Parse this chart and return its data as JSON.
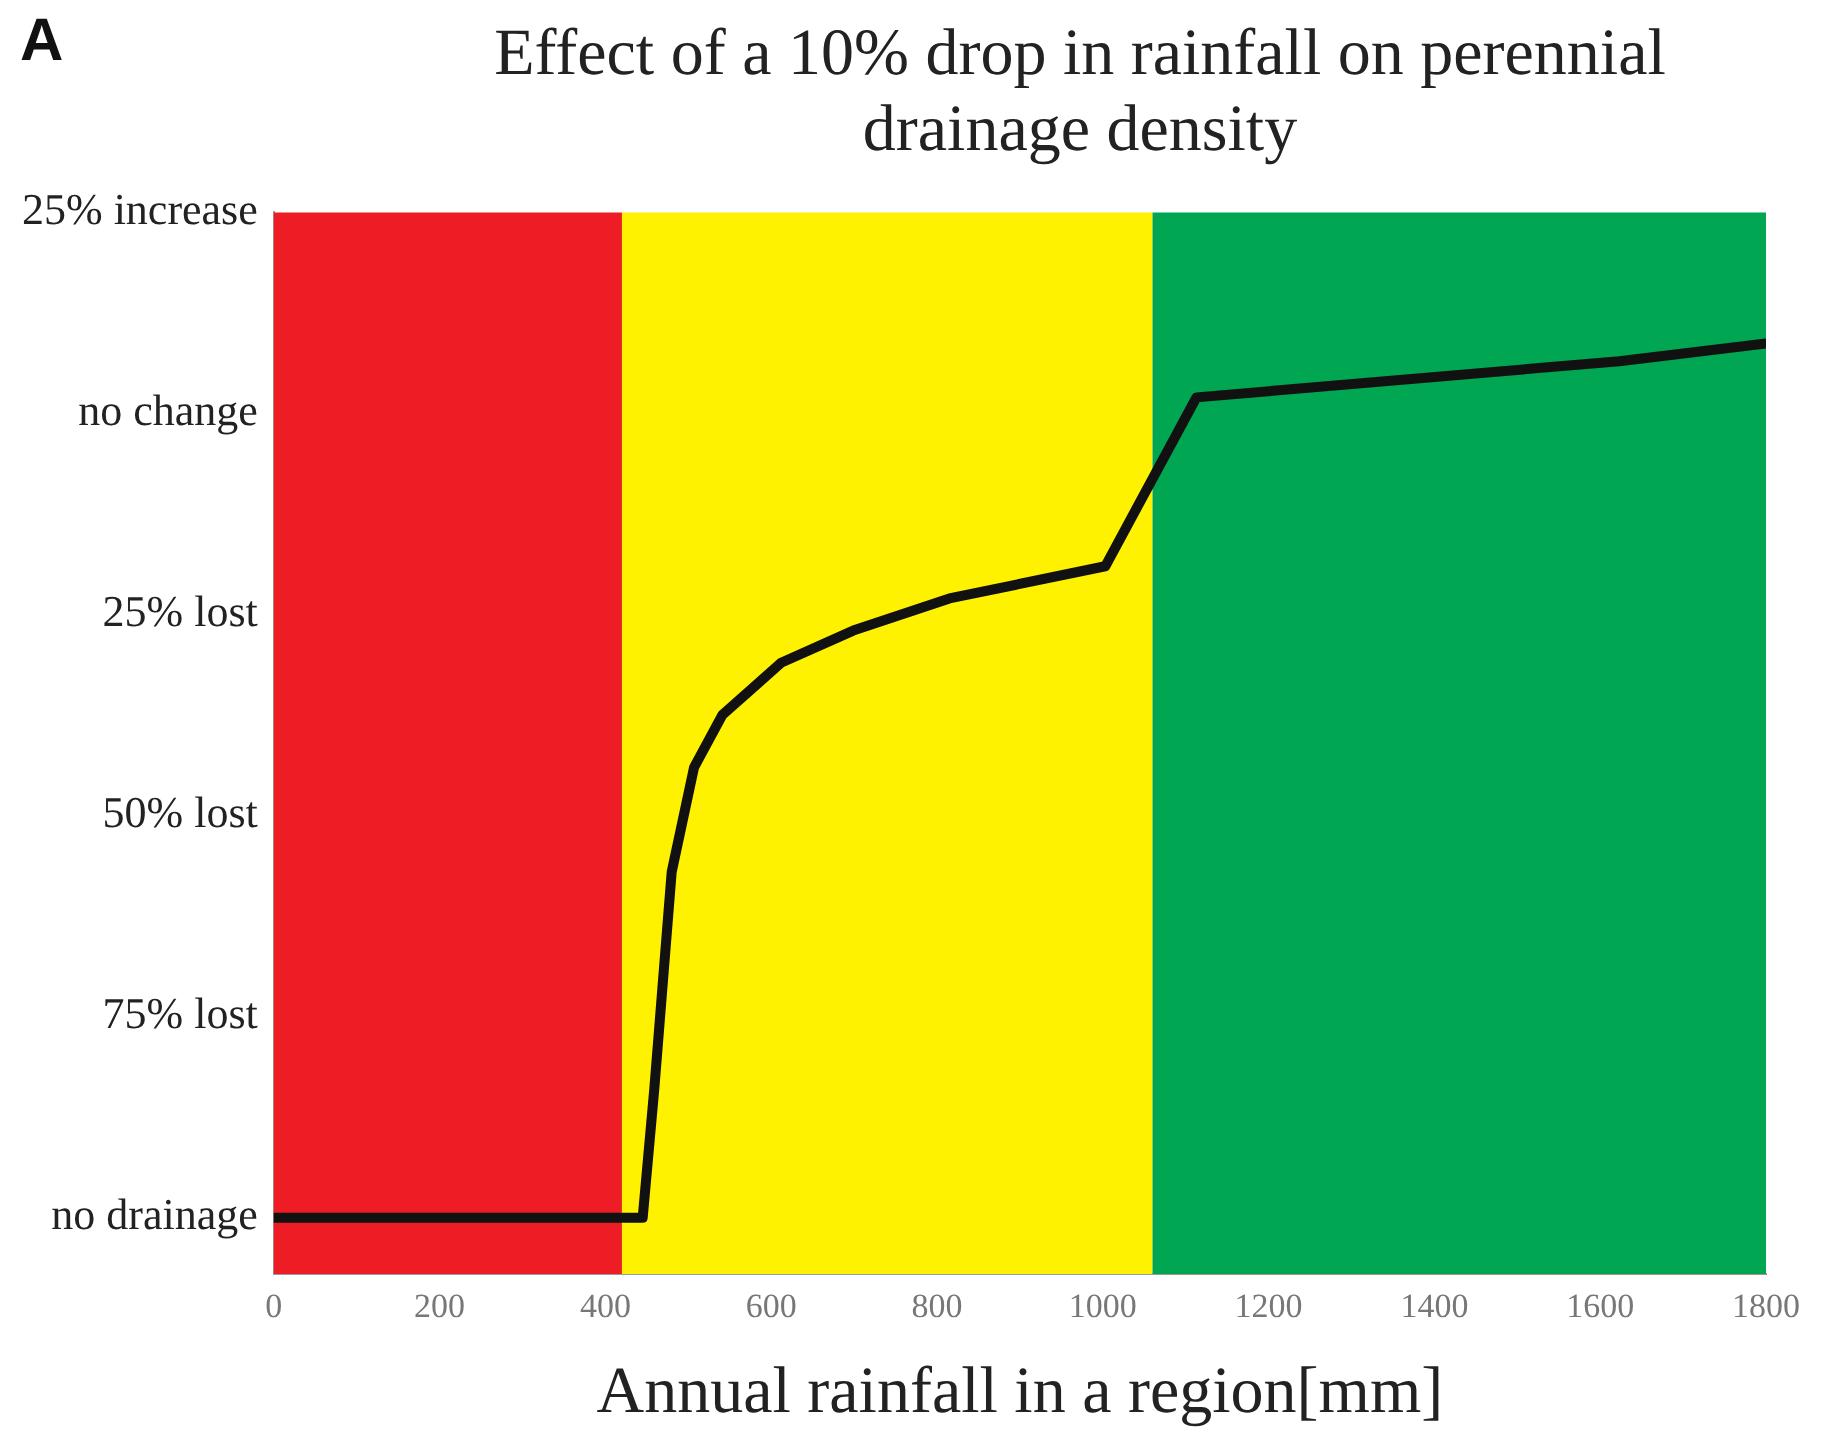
{
  "chart_data": {
    "type": "line",
    "title": "Effect of a 10% drop in rainfall on perennial drainage density",
    "xlabel": "Annual rainfall in a region[mm]",
    "annotations": [
      "A"
    ],
    "xlim": [
      0,
      1800
    ],
    "xticks": [
      0,
      200,
      400,
      600,
      800,
      1000,
      1200,
      1400,
      1600,
      1800
    ],
    "ylim": [
      -107,
      25
    ],
    "yticks": [
      {
        "value": 25,
        "label": "25% increase"
      },
      {
        "value": 0,
        "label": "no change"
      },
      {
        "value": -25,
        "label": "25% lost"
      },
      {
        "value": -50,
        "label": "50% lost"
      },
      {
        "value": -75,
        "label": "75% lost"
      },
      {
        "value": -100,
        "label": "no drainage"
      }
    ],
    "grid": false,
    "marker": "none",
    "line_style": "solid",
    "bands": [
      {
        "axis": "x",
        "from": 0,
        "to": 420,
        "color": "#ee1c25"
      },
      {
        "axis": "x",
        "from": 420,
        "to": 1060,
        "color": "#fff200"
      },
      {
        "axis": "x",
        "from": 1060,
        "to": 1800,
        "color": "#00a651"
      }
    ],
    "series": [
      {
        "color": "#111111",
        "x": [
          0,
          445,
          459,
          480,
          507,
          541,
          612,
          699,
          815,
          1003,
          1113,
          1623,
          1800
        ],
        "values": [
          -100,
          -100,
          -84,
          -57,
          -44,
          -37.5,
          -31,
          -27,
          -23,
          -19,
          2,
          6.5,
          8.7
        ]
      }
    ]
  }
}
